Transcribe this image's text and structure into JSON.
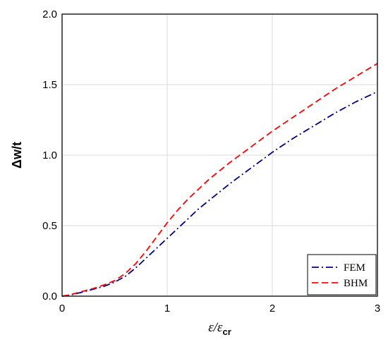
{
  "chart_data": {
    "type": "line",
    "title": "",
    "xlabel": {
      "main": "ε/ε",
      "sub": "cr"
    },
    "ylabel": "Δw/t",
    "xlim": [
      0,
      3
    ],
    "ylim": [
      0,
      2
    ],
    "xticks": [
      0,
      1,
      2,
      3
    ],
    "yticks": [
      0.0,
      0.5,
      1.0,
      1.5,
      2.0
    ],
    "xtick_labels": [
      "0",
      "1",
      "2",
      "3"
    ],
    "ytick_labels": [
      "0.0",
      "0.5",
      "1.0",
      "1.5",
      "2.0"
    ],
    "grid": true,
    "legend_position": "bottom-right",
    "series": [
      {
        "name": "FEM",
        "color": "#00008B",
        "dash": "dash-dot",
        "x": [
          0,
          0.05,
          0.1,
          0.2,
          0.3,
          0.4,
          0.5,
          0.6,
          0.7,
          0.8,
          0.9,
          1.0,
          1.1,
          1.2,
          1.3,
          1.4,
          1.5,
          1.6,
          1.8,
          2.0,
          2.2,
          2.4,
          2.6,
          2.8,
          3.0
        ],
        "y": [
          0,
          0.005,
          0.012,
          0.03,
          0.05,
          0.07,
          0.1,
          0.14,
          0.2,
          0.27,
          0.34,
          0.41,
          0.48,
          0.55,
          0.62,
          0.68,
          0.74,
          0.8,
          0.91,
          1.02,
          1.12,
          1.21,
          1.3,
          1.38,
          1.45
        ]
      },
      {
        "name": "BHM",
        "color": "#FF0000",
        "dash": "dash",
        "x": [
          0,
          0.05,
          0.1,
          0.2,
          0.3,
          0.4,
          0.5,
          0.6,
          0.7,
          0.8,
          0.9,
          1.0,
          1.1,
          1.2,
          1.3,
          1.4,
          1.5,
          1.6,
          1.8,
          2.0,
          2.2,
          2.4,
          2.6,
          2.8,
          3.0
        ],
        "y": [
          0,
          0.006,
          0.015,
          0.035,
          0.055,
          0.08,
          0.11,
          0.16,
          0.23,
          0.32,
          0.42,
          0.52,
          0.61,
          0.69,
          0.76,
          0.83,
          0.89,
          0.95,
          1.06,
          1.17,
          1.27,
          1.37,
          1.47,
          1.56,
          1.65
        ]
      }
    ]
  }
}
